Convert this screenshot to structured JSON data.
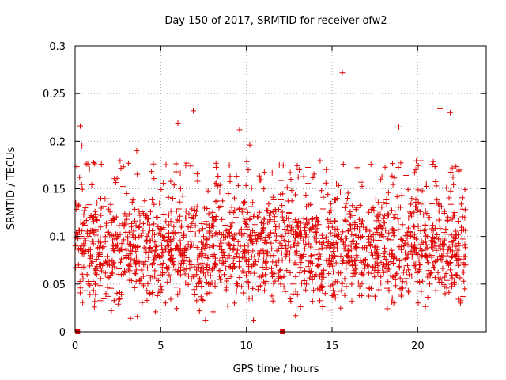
{
  "chart_data": {
    "type": "scatter",
    "title": "Day 150 of 2017, SRMTID for receiver ofw2",
    "xlabel": "GPS time / hours",
    "ylabel": "SRMTID / TECUs",
    "xlim": [
      0,
      24
    ],
    "ylim": [
      0,
      0.3
    ],
    "xticks": [
      0,
      5,
      10,
      15,
      20
    ],
    "xtick_labels": [
      "0",
      "5",
      "10",
      "15",
      "20"
    ],
    "yticks": [
      0,
      0.05,
      0.1,
      0.15,
      0.2,
      0.25,
      0.3
    ],
    "ytick_labels": [
      "0",
      "0.05",
      "0.1",
      "0.15",
      "0.2",
      "0.25",
      "0.3"
    ],
    "grid": true,
    "marker": "+",
    "color": "#e00000",
    "series": [
      {
        "name": "SRMTID",
        "x": [
          0.2,
          0.3,
          0.4,
          0.5,
          0.6,
          0.7,
          0.8,
          0.9,
          1.0,
          1.2,
          1.5,
          1.8,
          2.1,
          2.4,
          2.7,
          3.0,
          3.3,
          3.6,
          3.9,
          4.2,
          4.5,
          4.8,
          5.1,
          5.4,
          5.7,
          6.0,
          6.3,
          6.6,
          6.9,
          7.2,
          7.5,
          7.8,
          8.1,
          8.4,
          8.7,
          9.0,
          9.3,
          9.6,
          9.9,
          10.2,
          10.5,
          10.8,
          11.1,
          11.4,
          11.7,
          12.0,
          12.3,
          12.6,
          12.9,
          13.2,
          13.5,
          13.8,
          14.1,
          14.4,
          14.7,
          15.0,
          15.3,
          15.6,
          15.9,
          16.2,
          16.5,
          16.8,
          17.1,
          17.4,
          17.7,
          18.0,
          18.3,
          18.6,
          18.9,
          19.2,
          19.5,
          19.8,
          20.1,
          20.4,
          20.7,
          21.0,
          21.3,
          21.6,
          21.9,
          22.2,
          22.5,
          22.8
        ],
        "y": [
          0.07,
          0.216,
          0.195,
          0.09,
          0.13,
          0.06,
          0.1,
          0.08,
          0.12,
          0.05,
          0.14,
          0.04,
          0.07,
          0.09,
          0.06,
          0.08,
          0.11,
          0.19,
          0.05,
          0.1,
          0.07,
          0.12,
          0.06,
          0.09,
          0.14,
          0.219,
          0.08,
          0.11,
          0.232,
          0.07,
          0.1,
          0.05,
          0.09,
          0.13,
          0.06,
          0.08,
          0.03,
          0.212,
          0.09,
          0.196,
          0.07,
          0.1,
          0.06,
          0.08,
          0.11,
          0.05,
          0.09,
          0.16,
          0.07,
          0.1,
          0.05,
          0.08,
          0.12,
          0.06,
          0.09,
          0.08,
          0.1,
          0.272,
          0.14,
          0.07,
          0.11,
          0.06,
          0.09,
          0.13,
          0.08,
          0.1,
          0.07,
          0.12,
          0.215,
          0.09,
          0.06,
          0.11,
          0.07,
          0.08,
          0.05,
          0.09,
          0.234,
          0.04,
          0.23,
          0.06,
          0.03,
          0.07
        ],
        "density": [
          [
            0,
            1,
            0.9
          ],
          [
            1,
            2,
            1.0
          ],
          [
            2,
            3,
            1.0
          ],
          [
            3,
            4,
            1.0
          ],
          [
            4,
            5,
            1.0
          ],
          [
            5,
            6,
            1.0
          ],
          [
            6,
            7,
            1.0
          ],
          [
            7,
            8,
            1.0
          ],
          [
            8,
            9,
            1.0
          ],
          [
            9,
            10,
            1.0
          ],
          [
            10,
            11,
            1.0
          ],
          [
            11,
            12,
            1.0
          ],
          [
            12,
            13,
            1.0
          ],
          [
            13,
            14,
            1.0
          ],
          [
            14,
            15,
            1.0
          ],
          [
            15,
            16,
            1.0
          ],
          [
            16,
            17,
            1.0
          ],
          [
            17,
            18,
            1.0
          ],
          [
            18,
            19,
            1.0
          ],
          [
            19,
            20,
            1.0
          ],
          [
            20,
            21,
            1.0
          ],
          [
            21,
            22,
            1.0
          ],
          [
            22,
            22.8,
            0.9
          ]
        ]
      }
    ],
    "zero_markers_x": [
      0.15,
      12.1
    ]
  }
}
